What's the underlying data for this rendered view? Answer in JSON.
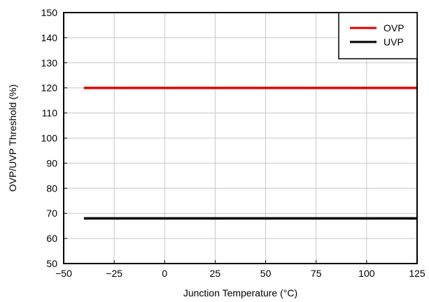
{
  "chart_data": {
    "type": "line",
    "title": "",
    "xlabel": "Junction Temperature (°C)",
    "ylabel": "OVP/UVP Threshold (%)",
    "xlim": [
      -50,
      125
    ],
    "ylim": [
      50,
      150
    ],
    "xticks": [
      -50,
      -25,
      0,
      25,
      50,
      75,
      100,
      125
    ],
    "yticks": [
      50,
      60,
      70,
      80,
      90,
      100,
      110,
      120,
      130,
      140,
      150
    ],
    "xtick_labels": [
      "−50",
      "−25",
      "0",
      "25",
      "50",
      "75",
      "100",
      "125"
    ],
    "ytick_labels": [
      "50",
      "60",
      "70",
      "80",
      "90",
      "100",
      "110",
      "120",
      "130",
      "140",
      "150"
    ],
    "grid": true,
    "legend_position": "top-right",
    "series": [
      {
        "name": "OVP",
        "color": "#e00000",
        "x": [
          -40,
          125
        ],
        "y": [
          120,
          120
        ]
      },
      {
        "name": "UVP",
        "color": "#000000",
        "x": [
          -40,
          125
        ],
        "y": [
          68,
          68
        ]
      }
    ]
  }
}
